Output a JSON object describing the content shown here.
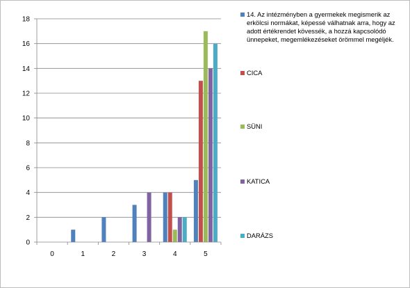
{
  "chart_data": {
    "type": "bar",
    "categories": [
      "0",
      "1",
      "2",
      "3",
      "4",
      "5"
    ],
    "ylim": [
      0,
      18
    ],
    "yticks": [
      0,
      2,
      4,
      6,
      8,
      10,
      12,
      14,
      16,
      18
    ],
    "grid": true,
    "legend_position": "right",
    "series": [
      {
        "name": "14. Az intézményben a gyermekek megismerik az erkölcsi normákat, képessé válhatnak arra, hogy az adott értékrendet kövessék, a hozzá kapcsolódó ünnepeket, megemlékezéseket örömmel megéljék.",
        "color": "#4f81bd",
        "values": [
          0,
          1,
          2,
          3,
          4,
          5
        ]
      },
      {
        "name": "CICA",
        "color": "#c0504d",
        "values": [
          0,
          0,
          0,
          0,
          4,
          13
        ]
      },
      {
        "name": "SÜNI",
        "color": "#9bbb59",
        "values": [
          0,
          0,
          0,
          0,
          1,
          17
        ]
      },
      {
        "name": "KATICA",
        "color": "#8064a2",
        "values": [
          0,
          0,
          0,
          4,
          2,
          14
        ]
      },
      {
        "name": "DARÁZS",
        "color": "#4bacc6",
        "values": [
          0,
          0,
          0,
          0,
          2,
          16
        ]
      }
    ]
  }
}
